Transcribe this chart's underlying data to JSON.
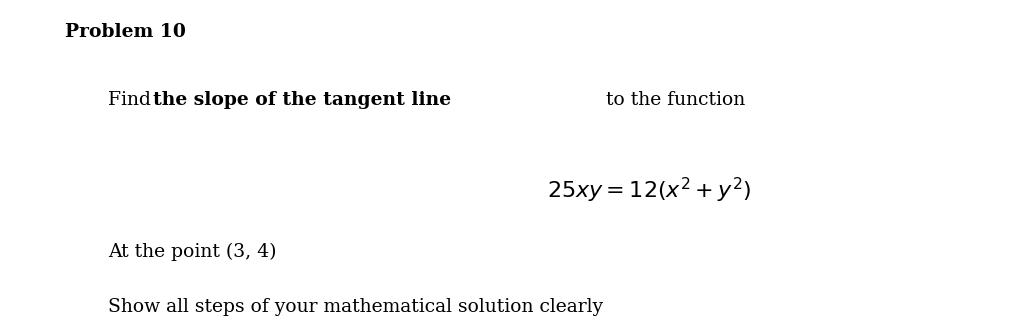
{
  "background_color": "#ffffff",
  "problem_label": "Problem 10",
  "line3": "At the point (3, 4)",
  "line4": "Show all steps of your mathematical solution clearly",
  "figsize": [
    10.31,
    3.26
  ],
  "dpi": 100,
  "problem_fontsize": 13.5,
  "text_fontsize": 13.5,
  "eq_fontsize": 16
}
